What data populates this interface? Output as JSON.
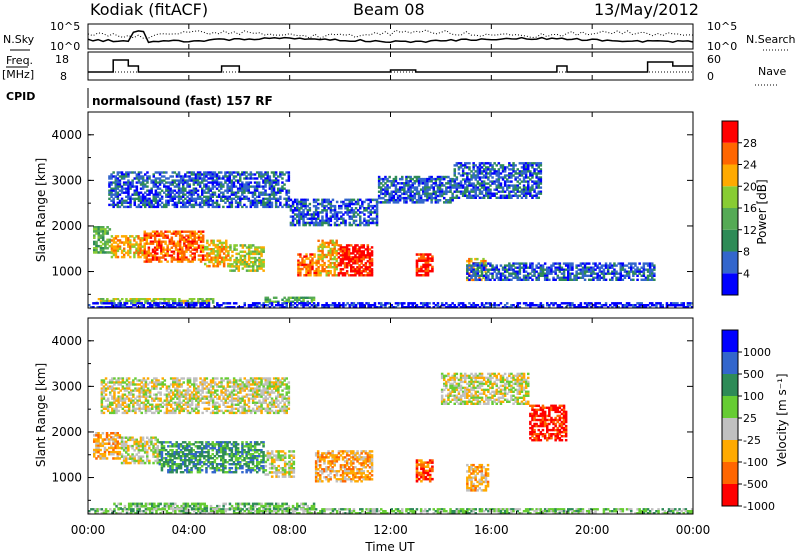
{
  "header": {
    "station": "Kodiak (fitACF)",
    "beam": "Beam 08",
    "date": "13/May/2012"
  },
  "panel_labels": {
    "nsky": "N.Sky",
    "nsky_ticks": [
      "10^5",
      "10^0"
    ],
    "nsearch": "N.Search",
    "nsearch_ticks": [
      "10^5",
      "10^0"
    ],
    "freq": "Freq.",
    "freq_unit": "[MHz]",
    "freq_ticks": [
      "18",
      "8"
    ],
    "nave": "Nave",
    "nave_ticks": [
      "60",
      "0"
    ],
    "cpid": "CPID",
    "program": "normalsound (fast) 157 RF"
  },
  "colors": {
    "power": [
      "#0000ff",
      "#3366cc",
      "#2e8b57",
      "#55aa55",
      "#88cc33",
      "#ffaa00",
      "#ff6600",
      "#ff0000"
    ],
    "velocity": [
      "#ff0000",
      "#ff6600",
      "#ffaa00",
      "#c0c0c0",
      "#66cc33",
      "#2e8b57",
      "#3366cc",
      "#0000ff"
    ],
    "ground_scatter": "#b0b0b0"
  },
  "chart_data": [
    {
      "type": "heatmap",
      "name": "power",
      "ylabel": "Slant Range [km]",
      "yticks": [
        "1000",
        "2000",
        "3000",
        "4000"
      ],
      "ylim": [
        200,
        4500
      ],
      "xlim": [
        0,
        24
      ],
      "colorbar": {
        "label": "Power [dB]",
        "ticks": [
          "4",
          "8",
          "12",
          "16",
          "20",
          "24",
          "28"
        ],
        "range": [
          0,
          32
        ]
      },
      "echo_regions": [
        {
          "t0": 0.2,
          "t1": 0.9,
          "r0": 1400,
          "r1": 2000,
          "level": 3
        },
        {
          "t0": 0.9,
          "t1": 2.2,
          "r0": 1300,
          "r1": 1800,
          "level": 5
        },
        {
          "t0": 2.2,
          "t1": 4.6,
          "r0": 1200,
          "r1": 1900,
          "level": 6
        },
        {
          "t0": 4.6,
          "t1": 5.6,
          "r0": 1100,
          "r1": 1700,
          "level": 5
        },
        {
          "t0": 5.6,
          "t1": 7.0,
          "r0": 1000,
          "r1": 1600,
          "level": 4
        },
        {
          "t0": 8.3,
          "t1": 9.1,
          "r0": 900,
          "r1": 1400,
          "level": 6
        },
        {
          "t0": 9.1,
          "t1": 9.9,
          "r0": 900,
          "r1": 1700,
          "level": 5
        },
        {
          "t0": 9.9,
          "t1": 11.3,
          "r0": 900,
          "r1": 1600,
          "level": 7
        },
        {
          "t0": 13.0,
          "t1": 13.7,
          "r0": 900,
          "r1": 1400,
          "level": 7
        },
        {
          "t0": 15.0,
          "t1": 15.8,
          "r0": 800,
          "r1": 1300,
          "level": 5
        },
        {
          "t0": 0.3,
          "t1": 5.0,
          "r0": 300,
          "r1": 420,
          "level": 4
        },
        {
          "t0": 7.0,
          "t1": 9.0,
          "r0": 320,
          "r1": 450,
          "level": 3
        },
        {
          "t0": 0.8,
          "t1": 8.0,
          "r0": 2400,
          "r1": 3200,
          "level": 1
        },
        {
          "t0": 8.0,
          "t1": 11.5,
          "r0": 2000,
          "r1": 2600,
          "level": 1
        },
        {
          "t0": 11.5,
          "t1": 14.5,
          "r0": 2500,
          "r1": 3100,
          "level": 1
        },
        {
          "t0": 14.5,
          "t1": 18.0,
          "r0": 2600,
          "r1": 3400,
          "level": 1
        },
        {
          "t0": 15.0,
          "t1": 22.5,
          "r0": 800,
          "r1": 1200,
          "level": 1
        },
        {
          "t0": 0.0,
          "t1": 24.0,
          "r0": 200,
          "r1": 330,
          "level": 0
        }
      ]
    },
    {
      "type": "heatmap",
      "name": "velocity",
      "ylabel": "Slant Range [km]",
      "yticks": [
        "1000",
        "2000",
        "3000",
        "4000"
      ],
      "ylim": [
        200,
        4500
      ],
      "xlim": [
        0,
        24
      ],
      "xticks": [
        "00:00",
        "04:00",
        "08:00",
        "12:00",
        "16:00",
        "20:00",
        "00:00"
      ],
      "xlabel": "Time UT",
      "colorbar": {
        "label": "Velocity [m s⁻¹]",
        "ticks": [
          "1000",
          "500",
          "100",
          "25",
          "-25",
          "-100",
          "-500",
          "-1000"
        ]
      },
      "echo_regions": [
        {
          "t0": 0.2,
          "t1": 1.3,
          "r0": 1400,
          "r1": 2000,
          "level": 2
        },
        {
          "t0": 1.3,
          "t1": 2.8,
          "r0": 1300,
          "r1": 1900,
          "level": 3
        },
        {
          "t0": 2.8,
          "t1": 7.0,
          "r0": 1100,
          "r1": 1800,
          "level": 5
        },
        {
          "t0": 7.0,
          "t1": 8.2,
          "r0": 1000,
          "r1": 1600,
          "level": 3
        },
        {
          "t0": 9.0,
          "t1": 11.3,
          "r0": 900,
          "r1": 1600,
          "level": 2
        },
        {
          "t0": 13.0,
          "t1": 13.7,
          "r0": 900,
          "r1": 1400,
          "level": 1
        },
        {
          "t0": 15.0,
          "t1": 15.9,
          "r0": 700,
          "r1": 1300,
          "level": 2
        },
        {
          "t0": 1.0,
          "t1": 9.0,
          "r0": 300,
          "r1": 450,
          "level": 4
        },
        {
          "t0": 0.5,
          "t1": 8.0,
          "r0": 2400,
          "r1": 3200,
          "level": 3
        },
        {
          "t0": 14.0,
          "t1": 17.5,
          "r0": 2600,
          "r1": 3300,
          "level": 3
        },
        {
          "t0": 17.5,
          "t1": 19.0,
          "r0": 1800,
          "r1": 2600,
          "level": 0
        },
        {
          "t0": 0.0,
          "t1": 24.0,
          "r0": 200,
          "r1": 330,
          "level": 4
        }
      ]
    }
  ]
}
